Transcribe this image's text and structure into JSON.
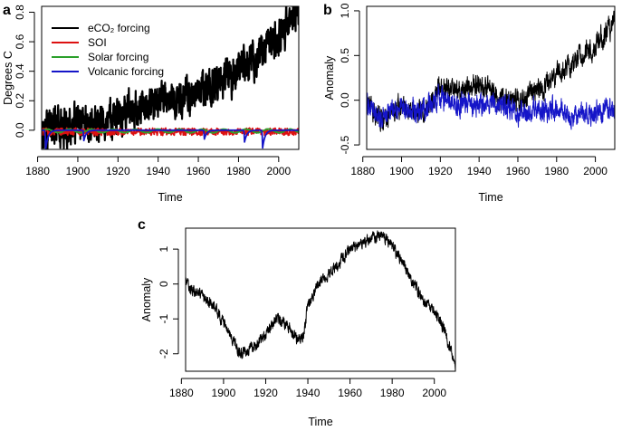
{
  "chart_data": [
    {
      "panel": "a",
      "type": "line",
      "xlabel": "Time",
      "ylabel": "Degrees C",
      "xlim": [
        1882,
        2010
      ],
      "ylim": [
        -0.13,
        0.84
      ],
      "xticks": [
        1880,
        1900,
        1920,
        1940,
        1960,
        1980,
        2000
      ],
      "yticks": [
        0.0,
        0.2,
        0.4,
        0.6,
        0.8
      ],
      "ytick_labels": [
        "0.0",
        "0.2",
        "0.4",
        "0.6",
        "0.8"
      ],
      "legend": {
        "position": "top-left",
        "entries": [
          "eCO₂ forcing",
          "SOI",
          "Solar forcing",
          "Volcanic forcing"
        ]
      },
      "series": [
        {
          "name": "eCO₂ forcing",
          "color": "#000000",
          "x": [
            1882,
            1890,
            1900,
            1910,
            1920,
            1930,
            1940,
            1945,
            1950,
            1955,
            1960,
            1965,
            1970,
            1975,
            1980,
            1985,
            1990,
            1995,
            2000,
            2005,
            2010
          ],
          "y": [
            0.02,
            0.025,
            0.04,
            0.07,
            0.1,
            0.14,
            0.18,
            0.19,
            0.2,
            0.22,
            0.25,
            0.28,
            0.32,
            0.36,
            0.41,
            0.46,
            0.52,
            0.58,
            0.64,
            0.71,
            0.82
          ]
        },
        {
          "name": "SOI",
          "color": "#dd1111",
          "pattern": "noise",
          "mean": -0.01,
          "amplitude": 0.025,
          "x_range": [
            1882,
            2010
          ]
        },
        {
          "name": "Solar forcing",
          "color": "#2ba02b",
          "pattern": "cycle",
          "mean": -0.005,
          "amplitude": 0.012,
          "period_years": 11,
          "x_range": [
            1882,
            2010
          ]
        },
        {
          "name": "Volcanic forcing",
          "color": "#1515c8",
          "pattern": "baseline-with-dips",
          "baseline": 0.0,
          "x_range": [
            1882,
            2010
          ],
          "dips": [
            {
              "year": 1884,
              "depth": -0.13
            },
            {
              "year": 1903,
              "depth": -0.07
            },
            {
              "year": 1963,
              "depth": -0.06
            },
            {
              "year": 1983,
              "depth": -0.08
            },
            {
              "year": 1992,
              "depth": -0.12
            }
          ]
        }
      ]
    },
    {
      "panel": "b",
      "type": "line",
      "xlabel": "Time",
      "ylabel": "Anomaly",
      "xlim": [
        1882,
        2010
      ],
      "ylim": [
        -0.55,
        1.05
      ],
      "xticks": [
        1880,
        1900,
        1920,
        1940,
        1960,
        1980,
        2000
      ],
      "yticks": [
        -0.5,
        0.0,
        0.5,
        1.0
      ],
      "ytick_labels": [
        "-0.5",
        "0.0",
        "0.5",
        "1.0"
      ],
      "series": [
        {
          "name": "",
          "color": "#000000",
          "x": [
            1882,
            1890,
            1900,
            1910,
            1920,
            1930,
            1940,
            1950,
            1960,
            1970,
            1980,
            1990,
            2000,
            2010
          ],
          "y": [
            -0.05,
            -0.2,
            -0.05,
            -0.15,
            0.15,
            0.1,
            0.18,
            0.05,
            0.0,
            0.1,
            0.28,
            0.45,
            0.6,
            0.9
          ]
        },
        {
          "name": "",
          "color": "#1515c8",
          "x": [
            1882,
            1890,
            1900,
            1910,
            1920,
            1930,
            1940,
            1950,
            1960,
            1970,
            1980,
            1990,
            2000,
            2010
          ],
          "y": [
            -0.05,
            -0.2,
            -0.05,
            -0.15,
            0.05,
            -0.05,
            -0.05,
            -0.05,
            -0.12,
            -0.12,
            -0.1,
            -0.15,
            -0.15,
            -0.08
          ]
        }
      ]
    },
    {
      "panel": "c",
      "type": "line",
      "xlabel": "Time",
      "ylabel": "Anomaly",
      "xlim": [
        1882,
        2010
      ],
      "ylim": [
        -2.5,
        1.6
      ],
      "xticks": [
        1880,
        1900,
        1920,
        1940,
        1960,
        1980,
        2000
      ],
      "yticks": [
        -2,
        -1,
        0,
        1
      ],
      "ytick_labels": [
        "-2",
        "-1",
        "0",
        "1"
      ],
      "series": [
        {
          "name": "",
          "color": "#000000",
          "x": [
            1882,
            1885,
            1890,
            1895,
            1900,
            1905,
            1908,
            1912,
            1918,
            1925,
            1930,
            1935,
            1938,
            1940,
            1945,
            1950,
            1955,
            1960,
            1965,
            1970,
            1975,
            1980,
            1985,
            1990,
            1995,
            2000,
            2005,
            2010
          ],
          "y": [
            0.1,
            -0.2,
            -0.4,
            -0.6,
            -1.1,
            -1.7,
            -2.0,
            -1.9,
            -1.6,
            -1.0,
            -1.1,
            -1.6,
            -1.4,
            -0.6,
            0.0,
            0.3,
            0.6,
            1.0,
            1.1,
            1.3,
            1.4,
            1.1,
            0.6,
            0.0,
            -0.5,
            -0.8,
            -1.3,
            -2.4
          ]
        }
      ]
    }
  ]
}
